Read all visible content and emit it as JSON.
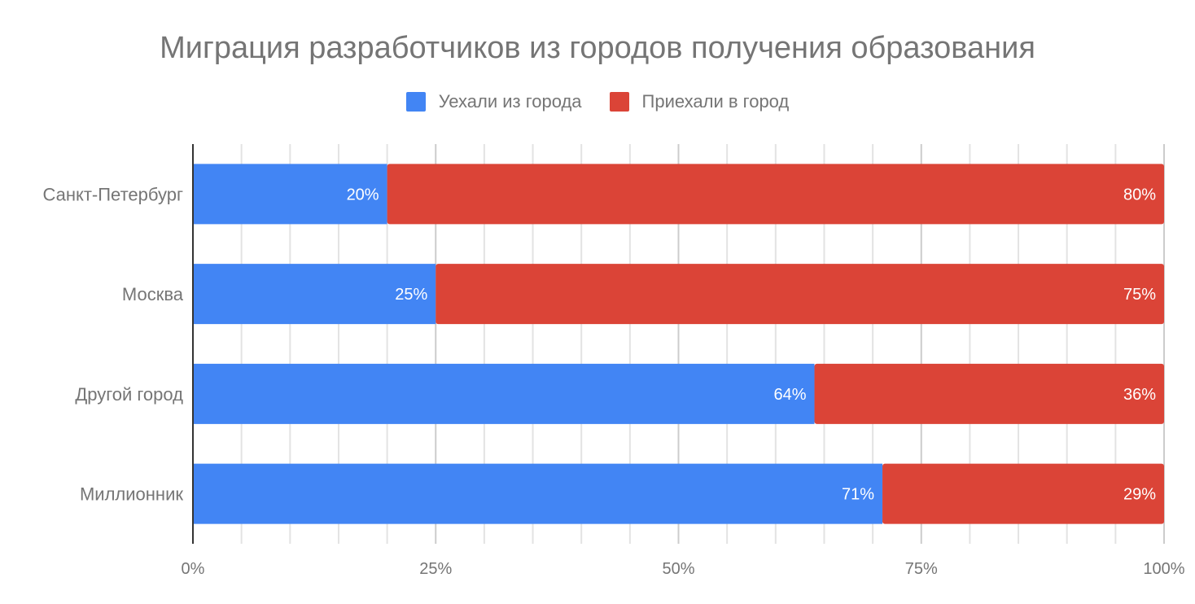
{
  "chart_data": {
    "type": "bar",
    "orientation": "horizontal",
    "stacked": true,
    "title": "Миграция разработчиков из городов получения образования",
    "categories": [
      "Санкт-Петербург",
      "Москва",
      "Другой город",
      "Миллионник"
    ],
    "series": [
      {
        "name": "Уехали из города",
        "color": "#4285f4",
        "values": [
          20,
          25,
          64,
          71
        ]
      },
      {
        "name": "Приехали в город",
        "color": "#db4437",
        "values": [
          80,
          75,
          36,
          29
        ]
      }
    ],
    "data_labels": [
      [
        "20%",
        "25%",
        "64%",
        "71%"
      ],
      [
        "80%",
        "75%",
        "36%",
        "29%"
      ]
    ],
    "xlim": [
      0,
      100
    ],
    "x_ticks": [
      "0%",
      "25%",
      "50%",
      "75%",
      "100%"
    ],
    "grid": true,
    "legend_position": "top",
    "xlabel": "",
    "ylabel": ""
  }
}
